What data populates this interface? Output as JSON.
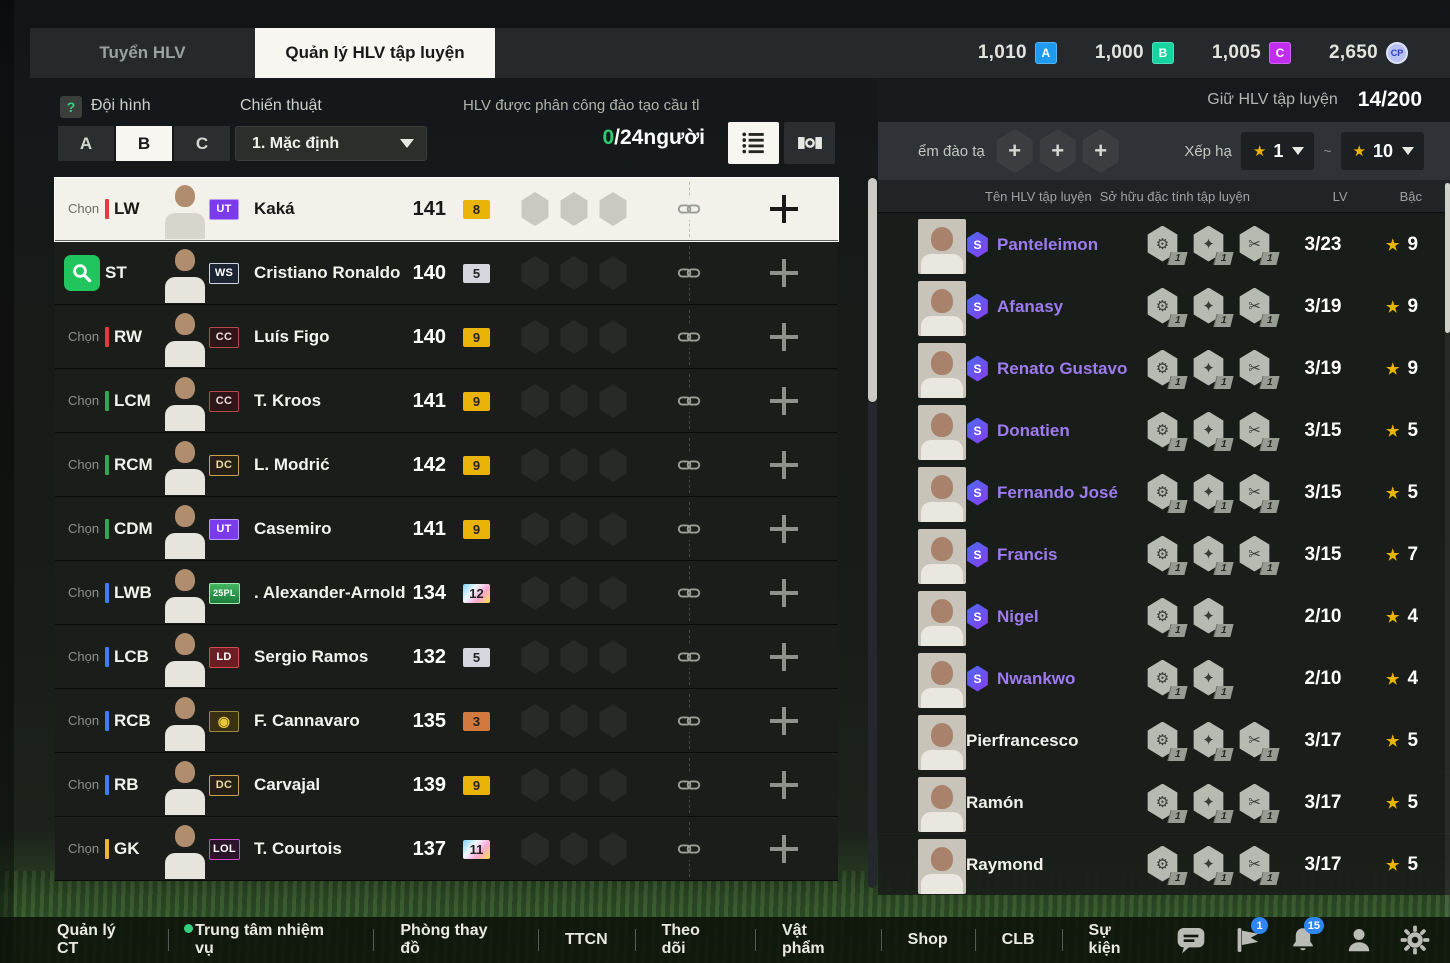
{
  "topbar": {
    "tabs": [
      {
        "label": "Tuyển HLV"
      },
      {
        "label": "Quản lý HLV tập luyện"
      }
    ],
    "currencies": [
      {
        "amount": "1,010",
        "badge": "A",
        "color": "#1e9bf0"
      },
      {
        "amount": "1,000",
        "badge": "B",
        "color": "#16d3a0"
      },
      {
        "amount": "1,005",
        "badge": "C",
        "color": "#c22ef0"
      },
      {
        "amount": "2,650",
        "badge": "CP",
        "color": "#b9c2f2"
      }
    ]
  },
  "squad": {
    "help_icon": "?",
    "formation_label": "Đội hình",
    "tabs": [
      {
        "label": "A"
      },
      {
        "label": "B"
      },
      {
        "label": "C"
      }
    ],
    "active_tab_index": 1,
    "tactic_label": "Chiến thuật",
    "tactic_value": "1. Mặc định",
    "assigned_label": "HLV được phân công đào tạo cầu tl",
    "assigned_current": "0",
    "assigned_rest": "/24người",
    "assigned_current_color": "#2ecc71",
    "players": [
      {
        "select": "Chọn",
        "pos": "LW",
        "pos_color": "#e23b3b",
        "badge": "UT",
        "badge_style": "purple",
        "name": "Kaká",
        "rating": "141",
        "boost": "8",
        "boost_style": "gold",
        "selected": true
      },
      {
        "select": "",
        "search": true,
        "pos": "ST",
        "pos_color": "",
        "badge": "WS",
        "badge_style": "dark-silver",
        "name": "Cristiano Ronaldo",
        "rating": "140",
        "boost": "5",
        "boost_style": "silver"
      },
      {
        "select": "Chọn",
        "pos": "RW",
        "pos_color": "#e23b3b",
        "badge": "CC",
        "badge_style": "dark-red",
        "name": "Luís Figo",
        "rating": "140",
        "boost": "9",
        "boost_style": "gold"
      },
      {
        "select": "Chọn",
        "pos": "LCM",
        "pos_color": "#2fa84f",
        "badge": "CC",
        "badge_style": "dark-red",
        "name": "T. Kroos",
        "rating": "141",
        "boost": "9",
        "boost_style": "gold"
      },
      {
        "select": "Chọn",
        "pos": "RCM",
        "pos_color": "#2fa84f",
        "badge": "DC",
        "badge_style": "dark-gold",
        "name": "L. Modrić",
        "rating": "142",
        "boost": "9",
        "boost_style": "gold"
      },
      {
        "select": "Chọn",
        "pos": "CDM",
        "pos_color": "#2fa84f",
        "badge": "UT",
        "badge_style": "purple",
        "name": "Casemiro",
        "rating": "141",
        "boost": "9",
        "boost_style": "gold"
      },
      {
        "select": "Chọn",
        "pos": "LWB",
        "pos_color": "#3b7ef0",
        "badge": "25PL",
        "badge_style": "green",
        "name": ". Alexander-Arnold",
        "rating": "134",
        "boost": "12",
        "boost_style": "prism"
      },
      {
        "select": "Chọn",
        "pos": "LCB",
        "pos_color": "#3b7ef0",
        "badge": "LD",
        "badge_style": "red",
        "name": "Sergio Ramos",
        "rating": "132",
        "boost": "5",
        "boost_style": "silver"
      },
      {
        "select": "Chọn",
        "pos": "RCB",
        "pos_color": "#3b7ef0",
        "badge": "◉",
        "badge_style": "gold-icon",
        "name": "F. Cannavaro",
        "rating": "135",
        "boost": "3",
        "boost_style": "bronze"
      },
      {
        "select": "Chọn",
        "pos": "RB",
        "pos_color": "#3b7ef0",
        "badge": "DC",
        "badge_style": "dark-gold",
        "name": "Carvajal",
        "rating": "139",
        "boost": "9",
        "boost_style": "gold"
      },
      {
        "select": "Chọn",
        "pos": "GK",
        "pos_color": "#f0b13b",
        "badge": "LOL",
        "badge_style": "dark-magenta",
        "name": "T. Courtois",
        "rating": "137",
        "boost": "11",
        "boost_style": "prism"
      }
    ]
  },
  "coaches": {
    "header_label": "Giữ HLV tập luyện",
    "header_count": "14/200",
    "filter_label": "ểm đào tạ",
    "plus_button_count": 3,
    "rank_label": "Xếp hạ",
    "rank_from": "1",
    "tilde": "~",
    "rank_to": "10",
    "star_color": "#e8b400",
    "columns": {
      "name": "Tên HLV tập luyện",
      "traits": "Sở hữu đặc tính tập luyện",
      "lv": "LV",
      "rank": "Bậc"
    },
    "s_badge_label": "S",
    "trait_tag": "1",
    "trait_glyphs": [
      "⚙",
      "✦",
      "✂"
    ],
    "rows": [
      {
        "name": "Panteleimon",
        "s": true,
        "traits": 3,
        "lv": "3/23",
        "rank": "9"
      },
      {
        "name": "Afanasy",
        "s": true,
        "traits": 3,
        "lv": "3/19",
        "rank": "9"
      },
      {
        "name": "Renato Gustavo",
        "s": true,
        "traits": 3,
        "lv": "3/19",
        "rank": "9"
      },
      {
        "name": "Donatien",
        "s": true,
        "traits": 3,
        "lv": "3/15",
        "rank": "5"
      },
      {
        "name": "Fernando José",
        "s": true,
        "traits": 3,
        "lv": "3/15",
        "rank": "5"
      },
      {
        "name": "Francis",
        "s": true,
        "traits": 3,
        "lv": "3/15",
        "rank": "7"
      },
      {
        "name": "Nigel",
        "s": true,
        "traits": 2,
        "lv": "2/10",
        "rank": "4"
      },
      {
        "name": "Nwankwo",
        "s": true,
        "traits": 2,
        "lv": "2/10",
        "rank": "4"
      },
      {
        "name": "Pierfrancesco",
        "s": false,
        "traits": 3,
        "lv": "3/17",
        "rank": "5"
      },
      {
        "name": "Ramón",
        "s": false,
        "traits": 3,
        "lv": "3/17",
        "rank": "5"
      },
      {
        "name": "Raymond",
        "s": false,
        "traits": 3,
        "lv": "3/17",
        "rank": "5"
      }
    ]
  },
  "bottom_nav": {
    "items": [
      {
        "label": "Quản lý CT"
      },
      {
        "label": "Trung tâm nhiệm vụ",
        "dot": true
      },
      {
        "label": "Phòng thay đồ"
      },
      {
        "label": "TTCN"
      },
      {
        "label": "Theo dõi"
      },
      {
        "label": "Vật phẩm"
      },
      {
        "label": "Shop"
      },
      {
        "label": "CLB"
      },
      {
        "label": "Sự kiện"
      }
    ],
    "icons": [
      {
        "name": "chat-icon"
      },
      {
        "name": "banner-icon",
        "badge": "1"
      },
      {
        "name": "bell-icon",
        "badge": "15"
      },
      {
        "name": "profile-icon"
      },
      {
        "name": "settings-icon"
      }
    ]
  }
}
